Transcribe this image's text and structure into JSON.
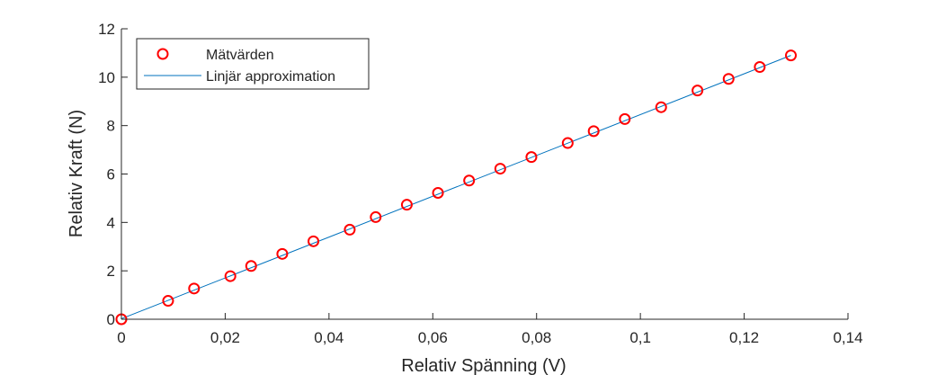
{
  "chart_data": {
    "type": "scatter",
    "xlabel": "Relativ Spänning (V)",
    "ylabel": "Relativ Kraft (N)",
    "xlim": [
      0,
      0.14
    ],
    "ylim": [
      0,
      12
    ],
    "x_ticks": [
      0,
      0.02,
      0.04,
      0.06,
      0.08,
      0.1,
      0.12,
      0.14
    ],
    "x_tick_labels": [
      "0",
      "0,02",
      "0,04",
      "0,06",
      "0,08",
      "0,1",
      "0,12",
      "0,14"
    ],
    "y_ticks": [
      0,
      2,
      4,
      6,
      8,
      10,
      12
    ],
    "y_tick_labels": [
      "0",
      "2",
      "4",
      "6",
      "8",
      "10",
      "12"
    ],
    "grid": false,
    "legend_position": "top-left",
    "series": [
      {
        "name": "Mätvärden",
        "kind": "markers",
        "marker": "circle",
        "color": "#ff0000",
        "x": [
          0,
          0.009,
          0.014,
          0.021,
          0.025,
          0.031,
          0.037,
          0.044,
          0.049,
          0.055,
          0.061,
          0.067,
          0.073,
          0.079,
          0.086,
          0.091,
          0.097,
          0.104,
          0.111,
          0.117,
          0.123,
          0.129
        ],
        "y": [
          0,
          0.76,
          1.27,
          1.78,
          2.2,
          2.7,
          3.22,
          3.7,
          4.22,
          4.73,
          5.22,
          5.73,
          6.22,
          6.7,
          7.28,
          7.77,
          8.27,
          8.76,
          9.45,
          9.93,
          10.42,
          10.9
        ]
      },
      {
        "name": "Linjär approximation",
        "kind": "line",
        "color": "#0072bd",
        "x": [
          0,
          0.129
        ],
        "y": [
          0.02,
          10.9
        ]
      }
    ]
  }
}
